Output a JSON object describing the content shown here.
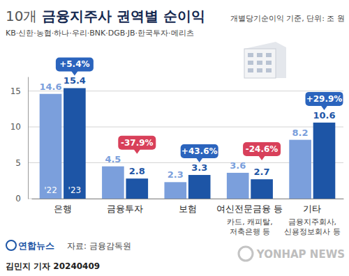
{
  "chart_data": {
    "type": "bar",
    "title": "10개 금융지주사 권역별 순이익",
    "subtitle": "KB·신한·농협·하나·우리·BNK·DGB·JB·한국투자·메리츠",
    "unit_note": "개별당기순이익 기준, 단위: 조 원",
    "categories": [
      "은행",
      "금융투자",
      "보험",
      "여신전문금융 등",
      "기타"
    ],
    "category_notes": [
      null,
      null,
      null,
      [
        "카드, 캐피탈,",
        "저축은행 등"
      ],
      [
        "금융지주회사,",
        "신용정보회사 등"
      ]
    ],
    "series": [
      {
        "name": "'22",
        "color": "#7b9fdc",
        "values": [
          14.6,
          4.5,
          2.3,
          3.6,
          8.2
        ]
      },
      {
        "name": "'23",
        "color": "#1d55a6",
        "values": [
          15.4,
          2.8,
          3.3,
          2.7,
          10.6
        ]
      }
    ],
    "annotations": [
      "+5.4%",
      "-37.9%",
      "+43.6%",
      "-24.6%",
      "+29.9%"
    ],
    "ylim": [
      0,
      17
    ],
    "yticks": [
      0,
      5,
      10,
      15
    ],
    "grid": true,
    "data_labels": true,
    "source": "자료: 금융감독원",
    "logo": "연합뉴스",
    "byline": "김민지 기자 20240409",
    "watermark": "YONHAP NEWS"
  }
}
